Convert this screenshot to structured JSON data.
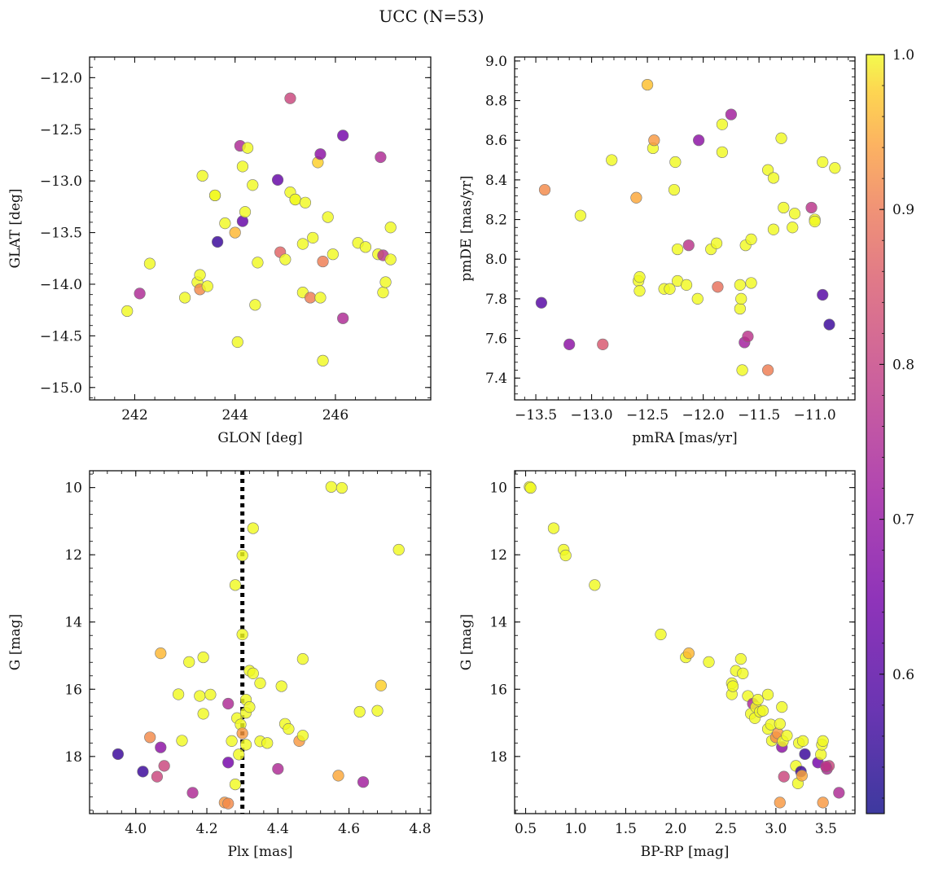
{
  "figure": {
    "title": "UCC (N=53)"
  },
  "colorbar": {
    "range": [
      0.51,
      1.0
    ],
    "ticks": [
      "0.6",
      "0.7",
      "0.8",
      "0.9",
      "1.0"
    ],
    "colormap": "plasma"
  },
  "chart_data": [
    {
      "type": "scatter",
      "xlabel": "GLON [deg]",
      "ylabel": "GLAT [deg]",
      "xlim": [
        241.1,
        247.9
      ],
      "ylim": [
        -15.12,
        -11.8
      ],
      "xticks": [
        "242",
        "244",
        "246"
      ],
      "yticks": [
        "−12.0",
        "−12.5",
        "−13.0",
        "−13.5",
        "−14.0",
        "−14.5",
        "−15.0"
      ],
      "points": [
        [
          241.85,
          -14.26,
          1.0
        ],
        [
          242.1,
          -14.09,
          0.7
        ],
        [
          242.3,
          -13.8,
          1.0
        ],
        [
          243.0,
          -14.13,
          1.0
        ],
        [
          243.25,
          -13.98,
          1.0
        ],
        [
          243.3,
          -14.05,
          0.86
        ],
        [
          243.3,
          -13.91,
          1.0
        ],
        [
          243.35,
          -12.95,
          1.0
        ],
        [
          243.45,
          -14.02,
          1.0
        ],
        [
          243.6,
          -13.14,
          1.0
        ],
        [
          243.6,
          -13.14,
          1.0
        ],
        [
          243.65,
          -13.59,
          0.55
        ],
        [
          243.8,
          -13.41,
          1.0
        ],
        [
          244.0,
          -13.5,
          0.92
        ],
        [
          244.05,
          -14.56,
          1.0
        ],
        [
          244.1,
          -12.66,
          0.7
        ],
        [
          244.15,
          -13.39,
          0.6
        ],
        [
          244.15,
          -12.86,
          1.0
        ],
        [
          244.2,
          -13.3,
          1.0
        ],
        [
          244.25,
          -12.68,
          1.0
        ],
        [
          244.35,
          -13.04,
          1.0
        ],
        [
          244.4,
          -14.2,
          1.0
        ],
        [
          244.45,
          -13.79,
          1.0
        ],
        [
          244.85,
          -12.99,
          0.6
        ],
        [
          244.9,
          -13.69,
          0.8
        ],
        [
          245.0,
          -13.76,
          1.0
        ],
        [
          245.1,
          -13.11,
          1.0
        ],
        [
          245.1,
          -12.2,
          0.75
        ],
        [
          245.2,
          -13.18,
          1.0
        ],
        [
          245.2,
          -13.18,
          1.0
        ],
        [
          245.35,
          -13.61,
          1.0
        ],
        [
          245.35,
          -14.08,
          1.0
        ],
        [
          245.4,
          -13.21,
          1.0
        ],
        [
          245.5,
          -14.13,
          0.84
        ],
        [
          245.55,
          -13.55,
          1.0
        ],
        [
          245.65,
          -12.82,
          0.95
        ],
        [
          245.7,
          -14.13,
          1.0
        ],
        [
          245.7,
          -12.74,
          0.65
        ],
        [
          245.75,
          -13.78,
          0.84
        ],
        [
          245.75,
          -14.74,
          1.0
        ],
        [
          245.85,
          -13.35,
          1.0
        ],
        [
          245.95,
          -13.71,
          1.0
        ],
        [
          246.15,
          -12.56,
          0.62
        ],
        [
          246.15,
          -14.33,
          0.7
        ],
        [
          246.45,
          -13.6,
          1.0
        ],
        [
          246.6,
          -13.64,
          1.0
        ],
        [
          246.85,
          -13.71,
          1.0
        ],
        [
          246.9,
          -12.77,
          0.7
        ],
        [
          246.95,
          -13.72,
          0.72
        ],
        [
          246.95,
          -14.08,
          1.0
        ],
        [
          247.0,
          -13.98,
          1.0
        ],
        [
          247.1,
          -13.45,
          1.0
        ],
        [
          247.1,
          -13.76,
          1.0
        ]
      ]
    },
    {
      "type": "scatter",
      "xlabel": "pmRA [mas/yr]",
      "ylabel": "pmDE [mas/yr]",
      "xlim": [
        -13.69,
        -10.64
      ],
      "ylim": [
        7.29,
        9.02
      ],
      "xticks": [
        "−13.5",
        "−13.0",
        "−12.5",
        "−12.0",
        "−11.5",
        "−11.0"
      ],
      "yticks": [
        "7.4",
        "7.6",
        "7.8",
        "8.0",
        "8.2",
        "8.4",
        "8.6",
        "8.8",
        "9.0"
      ],
      "points": [
        [
          -13.45,
          7.78,
          0.58
        ],
        [
          -13.42,
          8.35,
          0.86
        ],
        [
          -13.2,
          7.57,
          0.65
        ],
        [
          -13.1,
          8.22,
          1.0
        ],
        [
          -12.9,
          7.57,
          0.78
        ],
        [
          -12.82,
          8.5,
          1.0
        ],
        [
          -12.6,
          8.31,
          0.9
        ],
        [
          -12.58,
          7.89,
          1.0
        ],
        [
          -12.57,
          7.84,
          1.0
        ],
        [
          -12.57,
          7.91,
          1.0
        ],
        [
          -12.5,
          8.88,
          0.93
        ],
        [
          -12.45,
          8.56,
          1.0
        ],
        [
          -12.44,
          8.6,
          0.88
        ],
        [
          -12.35,
          7.85,
          1.0
        ],
        [
          -12.3,
          7.85,
          1.0
        ],
        [
          -12.26,
          8.35,
          1.0
        ],
        [
          -12.25,
          8.49,
          1.0
        ],
        [
          -12.23,
          7.89,
          1.0
        ],
        [
          -12.23,
          8.05,
          1.0
        ],
        [
          -12.15,
          7.87,
          1.0
        ],
        [
          -12.13,
          8.07,
          0.72
        ],
        [
          -12.05,
          7.8,
          1.0
        ],
        [
          -12.04,
          8.6,
          0.65
        ],
        [
          -11.93,
          8.05,
          1.0
        ],
        [
          -11.88,
          8.08,
          1.0
        ],
        [
          -11.87,
          7.86,
          0.82
        ],
        [
          -11.83,
          8.54,
          1.0
        ],
        [
          -11.83,
          8.68,
          1.0
        ],
        [
          -11.75,
          8.73,
          0.68
        ],
        [
          -11.67,
          7.87,
          1.0
        ],
        [
          -11.67,
          7.75,
          1.0
        ],
        [
          -11.66,
          7.8,
          1.0
        ],
        [
          -11.65,
          7.44,
          1.0
        ],
        [
          -11.63,
          7.58,
          0.68
        ],
        [
          -11.62,
          8.07,
          1.0
        ],
        [
          -11.6,
          7.61,
          0.72
        ],
        [
          -11.57,
          8.1,
          1.0
        ],
        [
          -11.57,
          7.88,
          1.0
        ],
        [
          -11.42,
          7.44,
          0.84
        ],
        [
          -11.42,
          8.45,
          1.0
        ],
        [
          -11.37,
          8.15,
          1.0
        ],
        [
          -11.37,
          8.41,
          1.0
        ],
        [
          -11.3,
          8.61,
          1.0
        ],
        [
          -11.28,
          8.26,
          1.0
        ],
        [
          -11.2,
          8.16,
          1.0
        ],
        [
          -11.18,
          8.23,
          1.0
        ],
        [
          -11.03,
          8.26,
          0.72
        ],
        [
          -11.0,
          8.2,
          1.0
        ],
        [
          -11.0,
          8.19,
          1.0
        ],
        [
          -10.93,
          7.82,
          0.58
        ],
        [
          -10.93,
          8.49,
          1.0
        ],
        [
          -10.82,
          8.46,
          1.0
        ],
        [
          -10.87,
          7.67,
          0.55
        ]
      ]
    },
    {
      "type": "scatter",
      "xlabel": "Plx [mas]",
      "ylabel": "G [mag]",
      "xlim": [
        3.87,
        4.83
      ],
      "ylim": [
        19.7,
        9.5
      ],
      "xticks": [
        "4.0",
        "4.2",
        "4.4",
        "4.6",
        "4.8"
      ],
      "yticks": [
        "10",
        "12",
        "14",
        "16",
        "18"
      ],
      "vline": 4.3,
      "points": [
        [
          3.95,
          17.93,
          0.55
        ],
        [
          4.02,
          18.45,
          0.55
        ],
        [
          4.04,
          17.43,
          0.86
        ],
        [
          4.06,
          18.6,
          0.75
        ],
        [
          4.07,
          14.93,
          0.92
        ],
        [
          4.07,
          17.73,
          0.65
        ],
        [
          4.08,
          18.28,
          0.75
        ],
        [
          4.12,
          16.15,
          1.0
        ],
        [
          4.13,
          17.53,
          1.0
        ],
        [
          4.15,
          15.19,
          1.0
        ],
        [
          4.16,
          19.08,
          0.7
        ],
        [
          4.18,
          16.2,
          1.0
        ],
        [
          4.19,
          16.73,
          1.0
        ],
        [
          4.19,
          15.05,
          1.0
        ],
        [
          4.21,
          16.16,
          1.0
        ],
        [
          4.25,
          19.37,
          0.88
        ],
        [
          4.26,
          16.43,
          0.7
        ],
        [
          4.26,
          19.4,
          0.86
        ],
        [
          4.26,
          18.18,
          0.62
        ],
        [
          4.27,
          17.54,
          1.0
        ],
        [
          4.28,
          12.9,
          1.0
        ],
        [
          4.28,
          18.83,
          1.0
        ],
        [
          4.285,
          16.86,
          1.0
        ],
        [
          4.29,
          17.94,
          1.0
        ],
        [
          4.295,
          17.05,
          1.0
        ],
        [
          4.3,
          14.37,
          1.0
        ],
        [
          4.3,
          12.02,
          1.0
        ],
        [
          4.3,
          17.31,
          0.88
        ],
        [
          4.31,
          16.31,
          1.0
        ],
        [
          4.31,
          16.7,
          1.0
        ],
        [
          4.31,
          17.65,
          1.0
        ],
        [
          4.32,
          15.45,
          1.0
        ],
        [
          4.32,
          16.53,
          1.0
        ],
        [
          4.33,
          11.21,
          1.0
        ],
        [
          4.33,
          15.53,
          1.0
        ],
        [
          4.35,
          17.55,
          1.0
        ],
        [
          4.35,
          15.82,
          1.0
        ],
        [
          4.37,
          17.6,
          1.0
        ],
        [
          4.4,
          18.37,
          0.7
        ],
        [
          4.41,
          15.91,
          1.0
        ],
        [
          4.42,
          17.03,
          1.0
        ],
        [
          4.43,
          17.18,
          1.0
        ],
        [
          4.46,
          17.54,
          0.88
        ],
        [
          4.47,
          17.38,
          1.0
        ],
        [
          4.47,
          15.1,
          1.0
        ],
        [
          4.55,
          9.98,
          1.0
        ],
        [
          4.57,
          18.57,
          0.9
        ],
        [
          4.58,
          10.01,
          1.0
        ],
        [
          4.63,
          16.67,
          1.0
        ],
        [
          4.64,
          18.76,
          0.68
        ],
        [
          4.68,
          16.64,
          1.0
        ],
        [
          4.69,
          15.89,
          0.95
        ],
        [
          4.74,
          11.85,
          1.0
        ]
      ]
    },
    {
      "type": "scatter",
      "xlabel": "BP-RP [mag]",
      "ylabel": "G [mag]",
      "xlim": [
        0.39,
        3.79
      ],
      "ylim": [
        19.7,
        9.5
      ],
      "xticks": [
        "0.5",
        "1.0",
        "1.5",
        "2.0",
        "2.5",
        "3.0",
        "3.5"
      ],
      "yticks": [
        "10",
        "12",
        "14",
        "16",
        "18"
      ],
      "points": [
        [
          0.54,
          9.98,
          1.0
        ],
        [
          0.55,
          10.01,
          1.0
        ],
        [
          0.78,
          11.21,
          1.0
        ],
        [
          0.88,
          11.85,
          1.0
        ],
        [
          0.9,
          12.02,
          1.0
        ],
        [
          1.19,
          12.9,
          1.0
        ],
        [
          1.85,
          14.37,
          1.0
        ],
        [
          2.1,
          15.05,
          1.0
        ],
        [
          2.13,
          14.93,
          0.92
        ],
        [
          2.33,
          15.19,
          1.0
        ],
        [
          2.56,
          15.82,
          1.0
        ],
        [
          2.56,
          16.15,
          1.0
        ],
        [
          2.57,
          15.91,
          1.0
        ],
        [
          2.6,
          15.45,
          1.0
        ],
        [
          2.65,
          15.1,
          1.0
        ],
        [
          2.67,
          15.53,
          1.0
        ],
        [
          2.72,
          16.2,
          1.0
        ],
        [
          2.75,
          16.73,
          1.0
        ],
        [
          2.77,
          16.43,
          0.7
        ],
        [
          2.79,
          16.86,
          1.0
        ],
        [
          2.8,
          16.53,
          1.0
        ],
        [
          2.82,
          16.31,
          1.0
        ],
        [
          2.84,
          16.67,
          1.0
        ],
        [
          2.87,
          16.64,
          1.0
        ],
        [
          2.92,
          16.16,
          1.0
        ],
        [
          2.92,
          17.18,
          1.0
        ],
        [
          2.95,
          17.05,
          1.0
        ],
        [
          2.96,
          17.53,
          1.0
        ],
        [
          3.0,
          17.43,
          0.86
        ],
        [
          3.02,
          17.31,
          0.88
        ],
        [
          3.04,
          17.03,
          1.0
        ],
        [
          3.06,
          16.53,
          1.0
        ],
        [
          3.06,
          17.72,
          0.65
        ],
        [
          3.07,
          17.55,
          1.0
        ],
        [
          3.08,
          18.6,
          0.75
        ],
        [
          3.11,
          17.38,
          1.0
        ],
        [
          3.04,
          19.37,
          0.88
        ],
        [
          3.2,
          18.28,
          1.0
        ],
        [
          3.22,
          18.8,
          1.0
        ],
        [
          3.23,
          17.6,
          1.0
        ],
        [
          3.25,
          18.45,
          0.55
        ],
        [
          3.26,
          18.57,
          0.9
        ],
        [
          3.27,
          17.54,
          1.0
        ],
        [
          3.29,
          17.93,
          0.55
        ],
        [
          3.42,
          18.18,
          0.62
        ],
        [
          3.45,
          17.94,
          1.0
        ],
        [
          3.46,
          17.65,
          1.0
        ],
        [
          3.47,
          17.54,
          1.0
        ],
        [
          3.47,
          19.37,
          0.88
        ],
        [
          3.51,
          18.37,
          0.7
        ],
        [
          3.53,
          18.28,
          0.75
        ],
        [
          3.63,
          19.08,
          0.7
        ],
        [
          3.5,
          18.3,
          0.72
        ]
      ]
    }
  ]
}
